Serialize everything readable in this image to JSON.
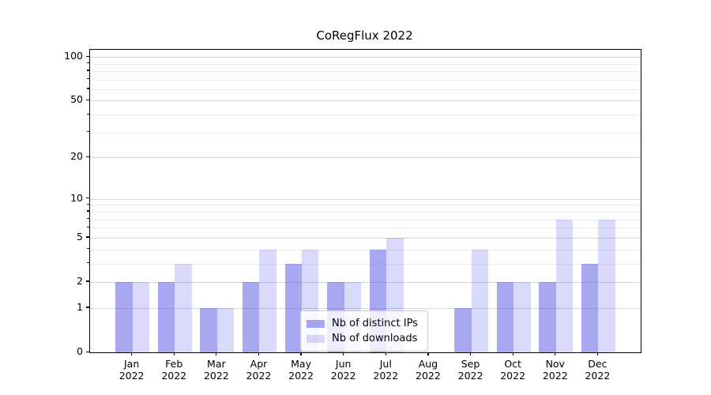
{
  "chart_data": {
    "type": "bar",
    "title": "CoRegFlux 2022",
    "categories": [
      "Jan 2022",
      "Feb 2022",
      "Mar 2022",
      "Apr 2022",
      "May 2022",
      "Jun 2022",
      "Jul 2022",
      "Aug 2022",
      "Sep 2022",
      "Oct 2022",
      "Nov 2022",
      "Dec 2022"
    ],
    "series": [
      {
        "name": "Nb of distinct IPs",
        "values": [
          2,
          2,
          1,
          2,
          3,
          2,
          4,
          0,
          1,
          2,
          2,
          3
        ],
        "color": "rgba(80,80,230,0.50)"
      },
      {
        "name": "Nb of downloads",
        "values": [
          2,
          3,
          1,
          4,
          4,
          2,
          5,
          0,
          4,
          2,
          7,
          7
        ],
        "color": "rgba(80,80,230,0.22)"
      }
    ],
    "yscale": "log10(1+y)",
    "ylim": [
      0,
      112
    ],
    "yticks_major": [
      0,
      1,
      2,
      5,
      10,
      20,
      50,
      100
    ],
    "yticks_minor": [
      3,
      4,
      6,
      7,
      8,
      9,
      30,
      40,
      60,
      70,
      80,
      90
    ],
    "grid": "on",
    "legend_position": "lower center inside",
    "colors": {
      "grid_major": "#d5d5d5",
      "grid_minor": "#ececec",
      "spine": "#000000",
      "background": "#ffffff"
    }
  }
}
